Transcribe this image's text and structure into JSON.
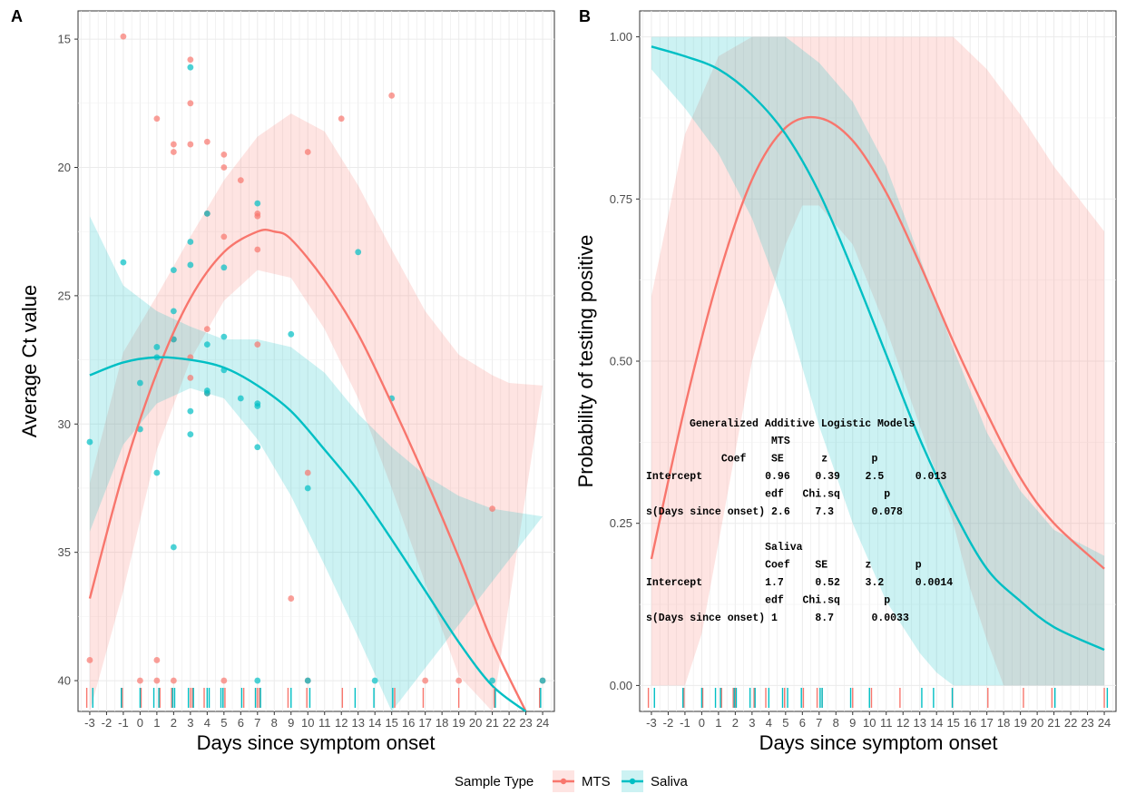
{
  "colors": {
    "MTS": "#F8766D",
    "Saliva": "#00BFC4",
    "mts_ribbon": "#F8766D",
    "saliva_ribbon": "#00BFC4"
  },
  "legend": {
    "title": "Sample Type",
    "items": [
      "MTS",
      "Saliva"
    ]
  },
  "stats_table": {
    "title": "Generalized Additive Logistic Models",
    "rows": [
      "                    MTS",
      "            Coef    SE      z       p",
      "Intercept          0.96    0.39    2.5     0.013",
      "                   edf   Chi.sq       p",
      "s(Days since onset) 2.6    7.3      0.078",
      "",
      "                   Saliva",
      "                   Coef    SE      z       p",
      "Intercept          1.7     0.52    3.2     0.0014",
      "                   edf   Chi.sq       p",
      "s(Days since onset) 1      8.7      0.0033"
    ]
  },
  "chart_data": [
    {
      "panel": "A",
      "type": "scatter",
      "xlabel": "Days since symptom onset",
      "ylabel": "Average Ct value",
      "xlim": [
        -3.7,
        24.7
      ],
      "ylim": [
        41.2,
        13.9
      ],
      "y_reversed": true,
      "x_ticks": [
        -3,
        -2,
        -1,
        0,
        1,
        2,
        3,
        4,
        5,
        6,
        7,
        8,
        9,
        10,
        11,
        12,
        13,
        14,
        15,
        16,
        17,
        18,
        19,
        20,
        21,
        22,
        23,
        24
      ],
      "y_ticks": [
        15,
        20,
        25,
        30,
        35,
        40
      ],
      "grid": true,
      "series": [
        {
          "name": "MTS",
          "points": [
            [
              -1,
              14.9
            ],
            [
              3,
              15.8
            ],
            [
              15,
              17.2
            ],
            [
              3,
              17.5
            ],
            [
              1,
              18.1
            ],
            [
              12,
              18.1
            ],
            [
              2,
              19.1
            ],
            [
              3,
              19.1
            ],
            [
              4,
              19.0
            ],
            [
              2,
              19.4
            ],
            [
              10,
              19.4
            ],
            [
              5,
              19.5
            ],
            [
              5,
              20.0
            ],
            [
              6,
              20.5
            ],
            [
              4,
              21.8
            ],
            [
              7,
              21.8
            ],
            [
              7,
              21.9
            ],
            [
              5,
              22.7
            ],
            [
              7,
              23.2
            ],
            [
              4,
              26.3
            ],
            [
              2,
              26.7
            ],
            [
              7,
              26.9
            ],
            [
              3,
              27.4
            ],
            [
              3,
              28.2
            ],
            [
              4,
              28.8
            ],
            [
              10,
              31.9
            ],
            [
              21,
              33.3
            ],
            [
              9,
              36.8
            ],
            [
              -3,
              39.2
            ],
            [
              1,
              39.2
            ],
            [
              0,
              40.0
            ],
            [
              1,
              40.0
            ],
            [
              2,
              40.0
            ],
            [
              5,
              40.0
            ],
            [
              10,
              40.0
            ],
            [
              17,
              40.0
            ],
            [
              19,
              40.0
            ],
            [
              24,
              40.0
            ]
          ],
          "fit": [
            [
              -3,
              36.8
            ],
            [
              -1,
              31.9
            ],
            [
              1,
              28.0
            ],
            [
              3,
              25.1
            ],
            [
              5,
              23.3
            ],
            [
              7,
              22.5
            ],
            [
              8,
              22.5
            ],
            [
              9,
              22.8
            ],
            [
              11,
              24.4
            ],
            [
              13,
              26.5
            ],
            [
              15,
              29.2
            ],
            [
              17,
              32.1
            ],
            [
              19,
              35.2
            ],
            [
              21,
              38.5
            ],
            [
              23,
              41.2
            ]
          ],
          "ribbon_upper": [
            [
              -3,
              42
            ],
            [
              -1,
              36.5
            ],
            [
              1,
              31.0
            ],
            [
              3,
              27.5
            ],
            [
              5,
              25.2
            ],
            [
              7,
              24.0
            ],
            [
              9,
              24.3
            ],
            [
              11,
              26.3
            ],
            [
              13,
              29.0
            ],
            [
              15,
              32.5
            ],
            [
              17,
              36.2
            ],
            [
              19,
              39.8
            ],
            [
              21,
              42
            ]
          ],
          "ribbon_lower": [
            [
              -3,
              32.3
            ],
            [
              -1,
              27.2
            ],
            [
              1,
              25.0
            ],
            [
              3,
              22.7
            ],
            [
              5,
              20.5
            ],
            [
              7,
              18.8
            ],
            [
              9,
              17.9
            ],
            [
              11,
              18.6
            ],
            [
              13,
              20.7
            ],
            [
              15,
              23.2
            ],
            [
              17,
              25.6
            ],
            [
              19,
              27.3
            ],
            [
              21,
              28.1
            ],
            [
              22,
              28.4
            ],
            [
              24,
              28.5
            ]
          ]
        },
        {
          "name": "Saliva",
          "points": [
            [
              3,
              16.1
            ],
            [
              7,
              21.4
            ],
            [
              4,
              21.8
            ],
            [
              3,
              22.9
            ],
            [
              13,
              23.3
            ],
            [
              -1,
              23.7
            ],
            [
              3,
              23.8
            ],
            [
              2,
              24.0
            ],
            [
              5,
              23.9
            ],
            [
              2,
              25.6
            ],
            [
              9,
              26.5
            ],
            [
              5,
              26.6
            ],
            [
              2,
              26.7
            ],
            [
              4,
              26.9
            ],
            [
              1,
              27.0
            ],
            [
              1,
              27.4
            ],
            [
              5,
              27.9
            ],
            [
              0,
              28.4
            ],
            [
              4,
              28.7
            ],
            [
              4,
              28.8
            ],
            [
              15,
              29.0
            ],
            [
              6,
              29.0
            ],
            [
              7,
              29.2
            ],
            [
              7,
              29.3
            ],
            [
              3,
              29.5
            ],
            [
              0,
              30.2
            ],
            [
              3,
              30.4
            ],
            [
              -3,
              30.7
            ],
            [
              7,
              30.9
            ],
            [
              1,
              31.9
            ],
            [
              10,
              32.5
            ],
            [
              2,
              34.8
            ],
            [
              7,
              40.0
            ],
            [
              10,
              40.0
            ],
            [
              14,
              40.0
            ],
            [
              21,
              40.0
            ],
            [
              24,
              40.0
            ]
          ],
          "fit": [
            [
              -3,
              28.1
            ],
            [
              -1,
              27.6
            ],
            [
              1,
              27.4
            ],
            [
              3,
              27.5
            ],
            [
              5,
              27.8
            ],
            [
              7,
              28.5
            ],
            [
              9,
              29.5
            ],
            [
              11,
              31.0
            ],
            [
              13,
              32.6
            ],
            [
              15,
              34.5
            ],
            [
              17,
              36.5
            ],
            [
              19,
              38.5
            ],
            [
              21,
              40.2
            ],
            [
              23,
              41.2
            ]
          ],
          "ribbon_upper": [
            [
              -3,
              34.2
            ],
            [
              -1,
              30.8
            ],
            [
              1,
              29.2
            ],
            [
              3,
              28.6
            ],
            [
              5,
              29.0
            ],
            [
              7,
              30.6
            ],
            [
              9,
              32.8
            ],
            [
              11,
              35.5
            ],
            [
              13,
              38.3
            ],
            [
              15,
              41.2
            ]
          ],
          "ribbon_lower": [
            [
              -3,
              21.9
            ],
            [
              -1,
              24.6
            ],
            [
              1,
              25.6
            ],
            [
              3,
              26.2
            ],
            [
              5,
              26.7
            ],
            [
              7,
              26.7
            ],
            [
              9,
              27.0
            ],
            [
              11,
              28.0
            ],
            [
              13,
              29.6
            ],
            [
              15,
              30.9
            ],
            [
              17,
              32.0
            ],
            [
              19,
              32.8
            ],
            [
              21,
              33.3
            ],
            [
              24,
              33.6
            ]
          ]
        }
      ],
      "rug": {
        "MTS": [
          -3,
          -1,
          0,
          1,
          2,
          3,
          3,
          4,
          5,
          5,
          6,
          7,
          7,
          7,
          9,
          10,
          12,
          15,
          17,
          19,
          21,
          24
        ],
        "Saliva": [
          -3,
          -1,
          0,
          1,
          1,
          2,
          2,
          3,
          3,
          4,
          4,
          5,
          5,
          6,
          7,
          7,
          9,
          10,
          13,
          14,
          15,
          21,
          24
        ]
      }
    },
    {
      "panel": "B",
      "type": "line",
      "xlabel": "Days since symptom onset",
      "ylabel": "Probability of testing positive",
      "xlim": [
        -3.7,
        24.7
      ],
      "ylim": [
        -0.04,
        1.04
      ],
      "x_ticks": [
        -3,
        -2,
        -1,
        0,
        1,
        2,
        3,
        4,
        5,
        6,
        7,
        8,
        9,
        10,
        11,
        12,
        13,
        14,
        15,
        16,
        17,
        18,
        19,
        20,
        21,
        22,
        23,
        24
      ],
      "y_ticks": [
        "0.00",
        "0.25",
        "0.50",
        "0.75",
        "1.00"
      ],
      "grid": true,
      "series": [
        {
          "name": "MTS",
          "fit": [
            [
              -3,
              0.195
            ],
            [
              -1,
              0.43
            ],
            [
              1,
              0.63
            ],
            [
              3,
              0.78
            ],
            [
              5,
              0.86
            ],
            [
              7,
              0.875
            ],
            [
              9,
              0.84
            ],
            [
              11,
              0.76
            ],
            [
              13,
              0.65
            ],
            [
              15,
              0.53
            ],
            [
              17,
              0.42
            ],
            [
              19,
              0.32
            ],
            [
              21,
              0.25
            ],
            [
              24,
              0.18
            ]
          ],
          "ribbon_upper": [
            [
              -3,
              0.6
            ],
            [
              -1,
              0.85
            ],
            [
              1,
              0.97
            ],
            [
              3,
              1.0
            ],
            [
              15,
              1.0
            ],
            [
              17,
              0.95
            ],
            [
              19,
              0.88
            ],
            [
              21,
              0.8
            ],
            [
              24,
              0.7
            ]
          ],
          "ribbon_lower": [
            [
              -3,
              0.0
            ],
            [
              -1,
              0.0
            ],
            [
              0,
              0.08
            ],
            [
              1,
              0.22
            ],
            [
              3,
              0.5
            ],
            [
              5,
              0.68
            ],
            [
              6,
              0.74
            ],
            [
              7,
              0.74
            ],
            [
              9,
              0.68
            ],
            [
              11,
              0.55
            ],
            [
              13,
              0.4
            ],
            [
              15,
              0.25
            ],
            [
              16,
              0.15
            ],
            [
              17,
              0.07
            ],
            [
              18,
              0.0
            ],
            [
              24,
              0.0
            ]
          ]
        },
        {
          "name": "Saliva",
          "fit": [
            [
              -3,
              0.985
            ],
            [
              -1,
              0.97
            ],
            [
              1,
              0.95
            ],
            [
              3,
              0.91
            ],
            [
              5,
              0.85
            ],
            [
              7,
              0.76
            ],
            [
              9,
              0.64
            ],
            [
              11,
              0.51
            ],
            [
              13,
              0.38
            ],
            [
              15,
              0.27
            ],
            [
              17,
              0.18
            ],
            [
              19,
              0.13
            ],
            [
              21,
              0.09
            ],
            [
              24,
              0.055
            ]
          ],
          "ribbon_upper": [
            [
              -3,
              1.0
            ],
            [
              5,
              1.0
            ],
            [
              7,
              0.96
            ],
            [
              9,
              0.9
            ],
            [
              11,
              0.8
            ],
            [
              13,
              0.66
            ],
            [
              15,
              0.52
            ],
            [
              17,
              0.39
            ],
            [
              19,
              0.3
            ],
            [
              21,
              0.24
            ],
            [
              24,
              0.2
            ]
          ],
          "ribbon_lower": [
            [
              -3,
              0.95
            ],
            [
              -1,
              0.89
            ],
            [
              1,
              0.82
            ],
            [
              3,
              0.72
            ],
            [
              5,
              0.58
            ],
            [
              7,
              0.4
            ],
            [
              9,
              0.25
            ],
            [
              11,
              0.13
            ],
            [
              13,
              0.05
            ],
            [
              14,
              0.02
            ],
            [
              15,
              0.0
            ],
            [
              24,
              0.0
            ]
          ]
        }
      ],
      "rug": {
        "MTS": [
          -3,
          -1,
          0,
          1,
          2,
          2,
          3,
          4,
          5,
          6,
          7,
          7,
          9,
          10,
          12,
          15,
          17,
          19,
          21,
          24
        ],
        "Saliva": [
          -3,
          -1,
          0,
          1,
          1,
          2,
          2,
          3,
          3,
          4,
          5,
          5,
          6,
          7,
          7,
          9,
          10,
          13,
          14,
          15,
          21,
          24
        ]
      }
    }
  ]
}
